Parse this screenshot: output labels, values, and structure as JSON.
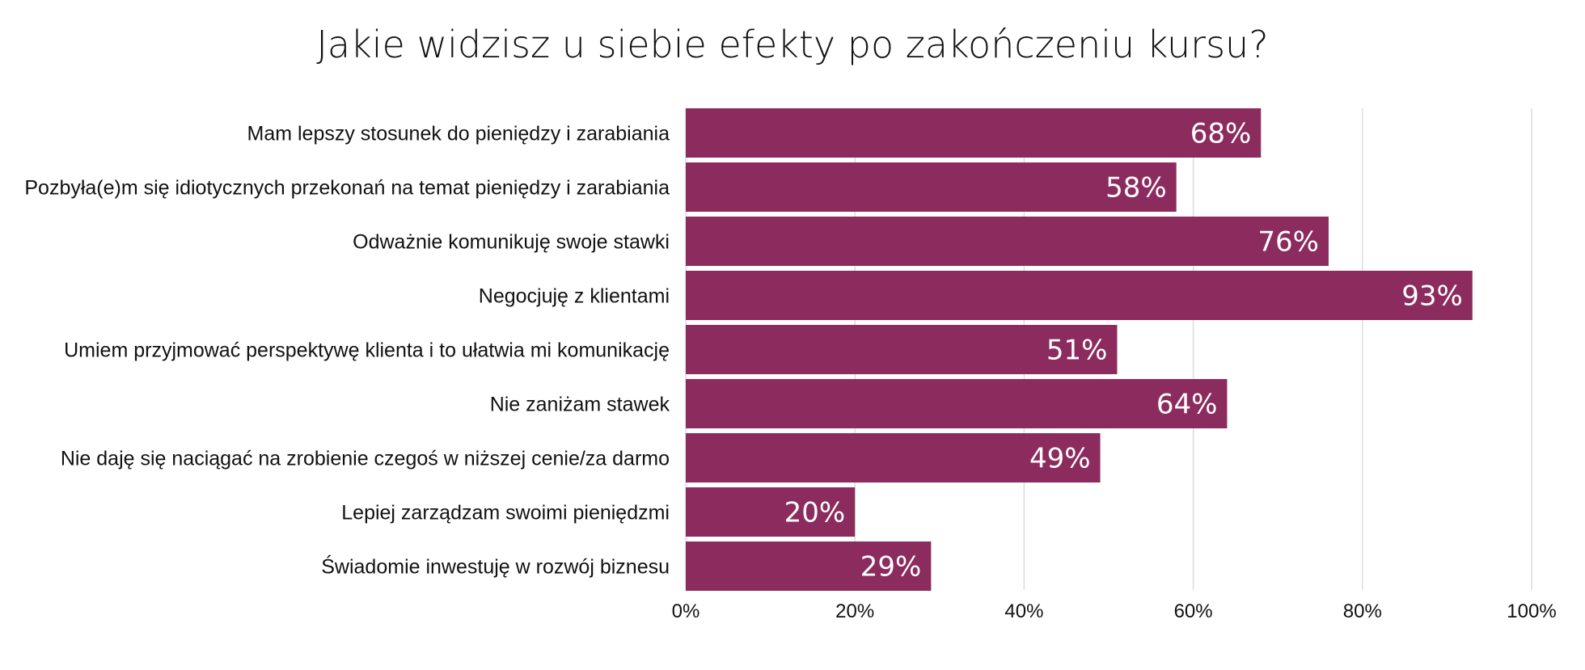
{
  "chart_data": {
    "type": "bar",
    "orientation": "horizontal",
    "title": "Jakie widzisz u siebie efekty po zakończeniu kursu?",
    "categories": [
      "Mam lepszy stosunek do pieniędzy i zarabiania",
      "Pozbyła(e)m się idiotycznych przekonań na temat pieniędzy i zarabiania",
      "Odważnie komunikuję swoje stawki",
      "Negocjuję z klientami",
      "Umiem przyjmować perspektywę klienta i to ułatwia mi komunikację",
      "Nie zaniżam stawek",
      "Nie daję się naciągać na zrobienie czegoś w niższej cenie/za darmo",
      "Lepiej zarządzam swoimi pieniędzmi",
      "Świadomie inwestuję w rozwój biznesu"
    ],
    "values": [
      68,
      58,
      76,
      93,
      51,
      64,
      49,
      20,
      29
    ],
    "data_labels": [
      "68%",
      "58%",
      "76%",
      "93%",
      "51%",
      "64%",
      "49%",
      "20%",
      "29%"
    ],
    "xlim": [
      0,
      100
    ],
    "ticks": [
      0,
      20,
      40,
      60,
      80,
      100
    ],
    "tick_labels": [
      "0%",
      "20%",
      "40%",
      "60%",
      "80%",
      "100%"
    ],
    "xlabel": "",
    "ylabel": "",
    "grid": "vertical",
    "legend": "none",
    "colors": {
      "bar": "#8B2B5E",
      "grid": "#dcdcdc",
      "text": "#111111",
      "value_text": "#ffffff"
    }
  }
}
